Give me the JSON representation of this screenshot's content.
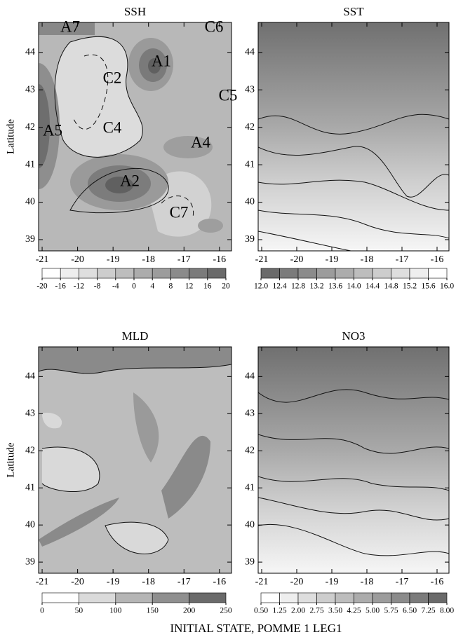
{
  "chart_data": [
    {
      "type": "contour",
      "title": "SSH",
      "ylabel": "Latitude",
      "xlim": [
        -21.1,
        -15.66
      ],
      "ylim": [
        38.7,
        44.8
      ],
      "xticks": [
        -21,
        -20,
        -19,
        -18,
        -17,
        -16
      ],
      "yticks": [
        39,
        40,
        41,
        42,
        43,
        44
      ],
      "annotations": [
        "A7",
        "C6",
        "A1",
        "C2",
        "C5",
        "A5",
        "C4",
        "A4",
        "A2",
        "C7"
      ],
      "colorbar_ticks": [
        -20,
        -16,
        -12,
        -8,
        -4,
        0,
        4,
        8,
        12,
        16,
        20
      ],
      "cmap": [
        "#ffffff",
        "#6a6a6a"
      ]
    },
    {
      "type": "contour",
      "title": "SST",
      "xlim": [
        -21.1,
        -15.66
      ],
      "ylim": [
        38.7,
        44.8
      ],
      "xticks": [
        -21,
        -20,
        -19,
        -18,
        -17,
        -16
      ],
      "yticks": [
        39,
        40,
        41,
        42,
        43,
        44
      ],
      "colorbar_ticks": [
        {
          "value": 12.0,
          "label": "12.0"
        },
        {
          "value": 12.4,
          "label": "12.4"
        },
        {
          "value": 12.8,
          "label": "12.8"
        },
        {
          "value": 13.2,
          "label": "13.2"
        },
        {
          "value": 13.6,
          "label": "13.6"
        },
        {
          "value": 14.0,
          "label": "14.0"
        },
        {
          "value": 14.4,
          "label": "14.4"
        },
        {
          "value": 14.8,
          "label": "14.8"
        },
        {
          "value": 15.2,
          "label": "15.2"
        },
        {
          "value": 15.6,
          "label": "15.6"
        },
        {
          "value": 16.0,
          "label": "16.0"
        }
      ],
      "cmap": [
        "#6a6a6a",
        "#ffffff"
      ]
    },
    {
      "type": "contour",
      "title": "MLD",
      "ylabel": "Latitude",
      "xlim": [
        -21.1,
        -15.66
      ],
      "ylim": [
        38.7,
        44.8
      ],
      "xticks": [
        -21,
        -20,
        -19,
        -18,
        -17,
        -16
      ],
      "yticks": [
        39,
        40,
        41,
        42,
        43,
        44
      ],
      "colorbar_ticks": [
        0,
        50,
        100,
        150,
        200,
        250
      ],
      "cmap": [
        "#ffffff",
        "#6a6a6a"
      ]
    },
    {
      "type": "contour",
      "title": "NO3",
      "xlim": [
        -21.1,
        -15.66
      ],
      "ylim": [
        38.7,
        44.8
      ],
      "xticks": [
        -21,
        -20,
        -19,
        -18,
        -17,
        -16
      ],
      "yticks": [
        39,
        40,
        41,
        42,
        43,
        44
      ],
      "colorbar_ticks": [
        {
          "value": 0.5,
          "label": "0.50"
        },
        {
          "value": 1.25,
          "label": "1.25"
        },
        {
          "value": 2.0,
          "label": "2.00"
        },
        {
          "value": 2.75,
          "label": "2.75"
        },
        {
          "value": 3.5,
          "label": "3.50"
        },
        {
          "value": 4.25,
          "label": "4.25"
        },
        {
          "value": 5.0,
          "label": "5.00"
        },
        {
          "value": 5.75,
          "label": "5.75"
        },
        {
          "value": 6.5,
          "label": "6.50"
        },
        {
          "value": 7.25,
          "label": "7.25"
        },
        {
          "value": 8.0,
          "label": "8.00"
        }
      ],
      "cmap": [
        "#ffffff",
        "#6a6a6a"
      ]
    }
  ],
  "caption": "INITIAL STATE, POMME 1 LEG1"
}
